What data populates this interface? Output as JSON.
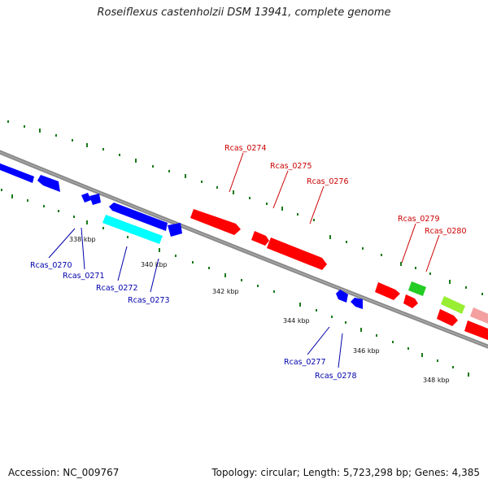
{
  "title": "Roseiflexus castenholzii DSM 13941, complete genome",
  "accession": "Accession: NC_009767",
  "summary": "Topology: circular; Length: 5,723,298 bp; Genes: 4,385",
  "colors": {
    "backbone": "#8a8a8a",
    "forward_gene": "#ff0000",
    "reverse_gene": "#0000ff",
    "cyan_gene": "#00ffff",
    "green_gene": "#22cc22",
    "lime_gene": "#99ee33",
    "pink_gene": "#f4a0a0",
    "ticks": "#1a7a1a",
    "forward_label": "#cc0000",
    "reverse_label": "#0000aa"
  },
  "tick_labels": [
    "338 kbp",
    "340 kbp",
    "342 kbp",
    "344 kbp",
    "346 kbp",
    "348 kbp"
  ],
  "gene_labels": {
    "forward": [
      "Rcas_0274",
      "Rcas_0275",
      "Rcas_0276",
      "Rcas_0279",
      "Rcas_0280"
    ],
    "reverse": [
      "Rcas_0270",
      "Rcas_0271",
      "Rcas_0272",
      "Rcas_0273",
      "Rcas_0277",
      "Rcas_0278"
    ]
  }
}
